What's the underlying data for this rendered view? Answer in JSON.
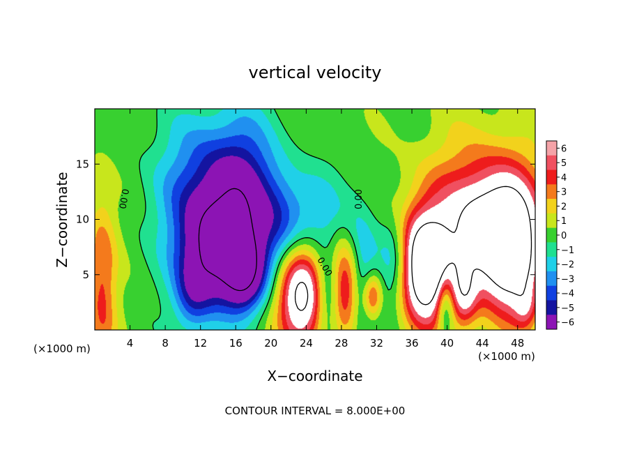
{
  "chart_data": {
    "type": "heatmap",
    "title": "vertical velocity",
    "xlabel": "X−coordinate",
    "ylabel": "Z−coordinate",
    "x_unit_left": "(×1000 m)",
    "x_unit_right": "(×1000 m)",
    "footer": "CONTOUR INTERVAL = 8.000E+00",
    "xlim": [
      0,
      50
    ],
    "ylim": [
      0,
      20
    ],
    "x_ticks": [
      4,
      8,
      12,
      16,
      20,
      24,
      28,
      32,
      36,
      40,
      44,
      48
    ],
    "y_ticks": [
      5,
      10,
      15
    ],
    "contour_labels": [
      "0.00",
      "0.00",
      "0.00"
    ],
    "colorbar": {
      "levels": [
        "6",
        "5",
        "4",
        "3",
        "2",
        "1",
        "0",
        "−1",
        "−2",
        "−3",
        "−4",
        "−5",
        "−6"
      ],
      "colors": [
        "#f4a3a8",
        "#f05060",
        "#ee1c1c",
        "#f47a1c",
        "#f2d21c",
        "#c8e61c",
        "#38d030",
        "#20e090",
        "#20d0e8",
        "#2090f0",
        "#1040e0",
        "#1414a0",
        "#8c14b4"
      ]
    },
    "field": {
      "background": 0.6,
      "features": [
        {
          "x": 0.8,
          "z": 4,
          "sx": 1.2,
          "sz": 6,
          "amp": 3.6
        },
        {
          "x": 13,
          "z": 13,
          "sx": 4,
          "sz": 4.5,
          "amp": -4.5
        },
        {
          "x": 17,
          "z": 12,
          "sx": 2.5,
          "sz": 5,
          "amp": -3.5
        },
        {
          "x": 11,
          "z": 3,
          "sx": 1.5,
          "sz": 2.5,
          "amp": -3
        },
        {
          "x": 14,
          "z": 7,
          "sx": 3,
          "sz": 3.5,
          "amp": -8
        },
        {
          "x": 17,
          "z": 5,
          "sx": 1.5,
          "sz": 2.2,
          "amp": -5
        },
        {
          "x": 21,
          "z": 9,
          "sx": 2,
          "sz": 4,
          "amp": -3
        },
        {
          "x": 25,
          "z": 10,
          "sx": 2.5,
          "sz": 3,
          "amp": -2.5
        },
        {
          "x": 23.5,
          "z": 3.2,
          "sx": 2,
          "sz": 3.4,
          "amp": 9
        },
        {
          "x": 26.5,
          "z": 3,
          "sx": 1.2,
          "sz": 2.5,
          "amp": -4
        },
        {
          "x": 28.5,
          "z": 4,
          "sx": 1.2,
          "sz": 3,
          "amp": 7
        },
        {
          "x": 30,
          "z": 5,
          "sx": 1.5,
          "sz": 4,
          "amp": -4
        },
        {
          "x": 31.5,
          "z": 3,
          "sx": 0.8,
          "sz": 1.5,
          "amp": 5
        },
        {
          "x": 34,
          "z": 6,
          "sx": 1.2,
          "sz": 3,
          "amp": -3
        },
        {
          "x": 37.5,
          "z": 5.5,
          "sx": 2,
          "sz": 3.5,
          "amp": 10
        },
        {
          "x": 44,
          "z": 10,
          "sx": 5,
          "sz": 5,
          "amp": 5
        },
        {
          "x": 45,
          "z": 8.5,
          "sx": 3,
          "sz": 3.5,
          "amp": 5
        },
        {
          "x": 47.5,
          "z": 7,
          "sx": 2,
          "sz": 4,
          "amp": 6
        },
        {
          "x": 42,
          "z": 3,
          "sx": 1,
          "sz": 2,
          "amp": 4
        },
        {
          "x": 39.8,
          "z": 2.5,
          "sx": 0.7,
          "sz": 2.2,
          "amp": -4
        },
        {
          "x": 49,
          "z": 2,
          "sx": 1,
          "sz": 1.5,
          "amp": 3
        }
      ]
    }
  }
}
